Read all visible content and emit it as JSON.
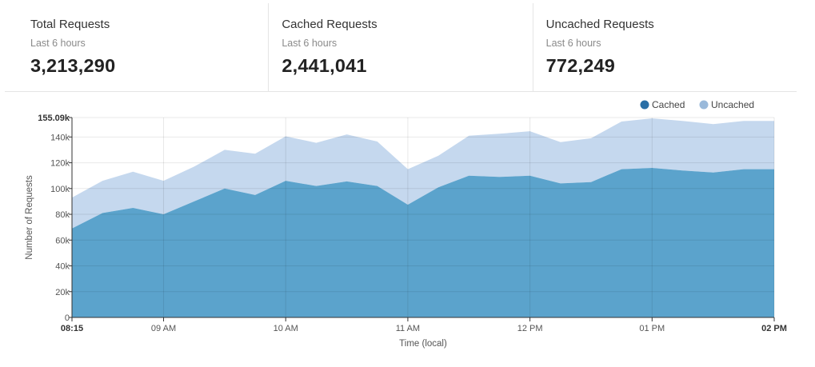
{
  "stats": [
    {
      "title": "Total Requests",
      "subtitle": "Last 6 hours",
      "value": "3,213,290"
    },
    {
      "title": "Cached Requests",
      "subtitle": "Last 6 hours",
      "value": "2,441,041"
    },
    {
      "title": "Uncached Requests",
      "subtitle": "Last 6 hours",
      "value": "772,249"
    }
  ],
  "colors": {
    "cached": "#5ba3cc",
    "cached_legend": "#2a6fa6",
    "uncached": "#c5d8ee",
    "uncached_legend": "#9ab9da"
  },
  "chart_data": {
    "type": "area",
    "stacked": true,
    "xlabel": "Time (local)",
    "ylabel": "Number of Requests",
    "x_range_minutes_after_0815": [
      0,
      345
    ],
    "ylim": [
      0,
      155090
    ],
    "y_ticks": [
      {
        "value": 0,
        "label": "0"
      },
      {
        "value": 20000,
        "label": "20k"
      },
      {
        "value": 40000,
        "label": "40k"
      },
      {
        "value": 60000,
        "label": "60k"
      },
      {
        "value": 80000,
        "label": "80k"
      },
      {
        "value": 100000,
        "label": "100k"
      },
      {
        "value": 120000,
        "label": "120k"
      },
      {
        "value": 140000,
        "label": "140k"
      },
      {
        "value": 155090,
        "label": "155.09k",
        "bold": true
      }
    ],
    "x_ticks": [
      {
        "value": 0,
        "label": "08:15",
        "bold": true
      },
      {
        "value": 45,
        "label": "09 AM"
      },
      {
        "value": 105,
        "label": "10 AM"
      },
      {
        "value": 165,
        "label": "11 AM"
      },
      {
        "value": 225,
        "label": "12 PM"
      },
      {
        "value": 285,
        "label": "01 PM"
      },
      {
        "value": 345,
        "label": "02 PM",
        "bold": true
      }
    ],
    "x": [
      0,
      15,
      30,
      45,
      60,
      75,
      90,
      105,
      120,
      135,
      150,
      165,
      180,
      195,
      210,
      225,
      240,
      255,
      270,
      285,
      300,
      315,
      330,
      345
    ],
    "series": [
      {
        "name": "Cached",
        "values": [
          69000,
          81000,
          85000,
          80000,
          90000,
          100000,
          95000,
          106000,
          102000,
          105500,
          102000,
          87500,
          101000,
          110000,
          109000,
          110000,
          104000,
          105000,
          115000,
          116000,
          114000,
          112500,
          115000,
          115000
        ]
      },
      {
        "name": "Uncached",
        "values": [
          24000,
          25000,
          28000,
          26000,
          27000,
          30000,
          32000,
          34500,
          33500,
          36500,
          34500,
          27500,
          24500,
          31000,
          33500,
          34500,
          32000,
          34000,
          37000,
          38500,
          38500,
          37500,
          37500,
          37500
        ]
      }
    ],
    "legend_position": "top-right",
    "grid": true
  }
}
